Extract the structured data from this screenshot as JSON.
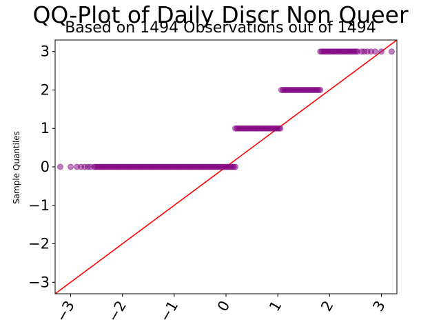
{
  "chart_data": {
    "type": "scatter",
    "title": "QQ-Plot of Daily Discr Non Queer",
    "subtitle": "Based on 1494 Observations out of 1494",
    "xlabel": "",
    "ylabel": "Sample Quantiles",
    "xlim": [
      -3.3,
      3.3
    ],
    "ylim": [
      -3.3,
      3.3
    ],
    "x_ticks": [
      -3,
      -2,
      -1,
      0,
      1,
      2,
      3
    ],
    "y_ticks": [
      -3,
      -2,
      -1,
      0,
      1,
      2,
      3
    ],
    "grid": false,
    "point_color": "#800080",
    "line_color": "#ff0000",
    "reference_line": {
      "slope": 1,
      "intercept": 0
    },
    "steps": [
      {
        "y": 0,
        "x_min": -3.2,
        "x_max": 0.18
      },
      {
        "y": 1,
        "x_min": 0.18,
        "x_max": 1.07
      },
      {
        "y": 2,
        "x_min": 1.07,
        "x_max": 1.82
      },
      {
        "y": 3,
        "x_min": 1.82,
        "x_max": 3.2
      }
    ],
    "sparse_points": [
      {
        "x": -3.2,
        "y": 0
      },
      {
        "x": -3.0,
        "y": 0
      },
      {
        "x": -2.88,
        "y": 0
      },
      {
        "x": -2.8,
        "y": 0
      },
      {
        "x": -2.73,
        "y": 0
      },
      {
        "x": -2.67,
        "y": 0
      },
      {
        "x": -2.62,
        "y": 0
      },
      {
        "x": 2.62,
        "y": 3
      },
      {
        "x": 2.67,
        "y": 3
      },
      {
        "x": 2.73,
        "y": 3
      },
      {
        "x": 2.8,
        "y": 3
      },
      {
        "x": 2.88,
        "y": 3
      },
      {
        "x": 3.0,
        "y": 3
      },
      {
        "x": 3.2,
        "y": 3
      }
    ]
  }
}
